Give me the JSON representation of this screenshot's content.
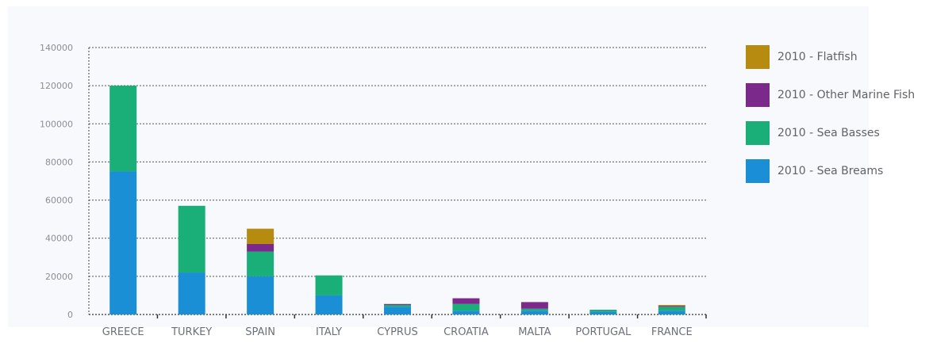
{
  "chart_data": {
    "type": "bar",
    "stacked": true,
    "categories": [
      "GREECE",
      "TURKEY",
      "SPAIN",
      "ITALY",
      "CYPRUS",
      "CROATIA",
      "MALTA",
      "PORTUGAL",
      "FRANCE"
    ],
    "series": [
      {
        "name": "2010 - Sea Breams",
        "color": "#1b8fd6",
        "values": [
          75000,
          22000,
          20000,
          10000,
          4000,
          2000,
          2000,
          1500,
          2000
        ]
      },
      {
        "name": "2010 - Sea Basses",
        "color": "#1aae79",
        "values": [
          45000,
          35000,
          13000,
          10500,
          1000,
          3500,
          1000,
          1000,
          2000
        ]
      },
      {
        "name": "2010 - Other Marine Fish",
        "color": "#7b2a8c",
        "values": [
          0,
          0,
          4000,
          0,
          500,
          3000,
          3500,
          0,
          500
        ]
      },
      {
        "name": "2010 - Flatfish",
        "color": "#b78a10",
        "values": [
          0,
          0,
          8000,
          0,
          0,
          0,
          0,
          0,
          500
        ]
      }
    ],
    "yticks": [
      "0",
      "20000",
      "40000",
      "60000",
      "80000",
      "100000",
      "120000",
      "140000"
    ],
    "ylim": [
      0,
      140000
    ],
    "grid": true,
    "legend_position": "right",
    "xlabel": "",
    "ylabel": "",
    "title": ""
  },
  "legend_items": [
    {
      "label": "2010 - Flatfish",
      "color": "#b78a10"
    },
    {
      "label": "2010 - Other Marine Fish",
      "color": "#7b2a8c"
    },
    {
      "label": "2010 - Sea Basses",
      "color": "#1aae79"
    },
    {
      "label": "2010 - Sea Breams",
      "color": "#1b8fd6"
    }
  ]
}
